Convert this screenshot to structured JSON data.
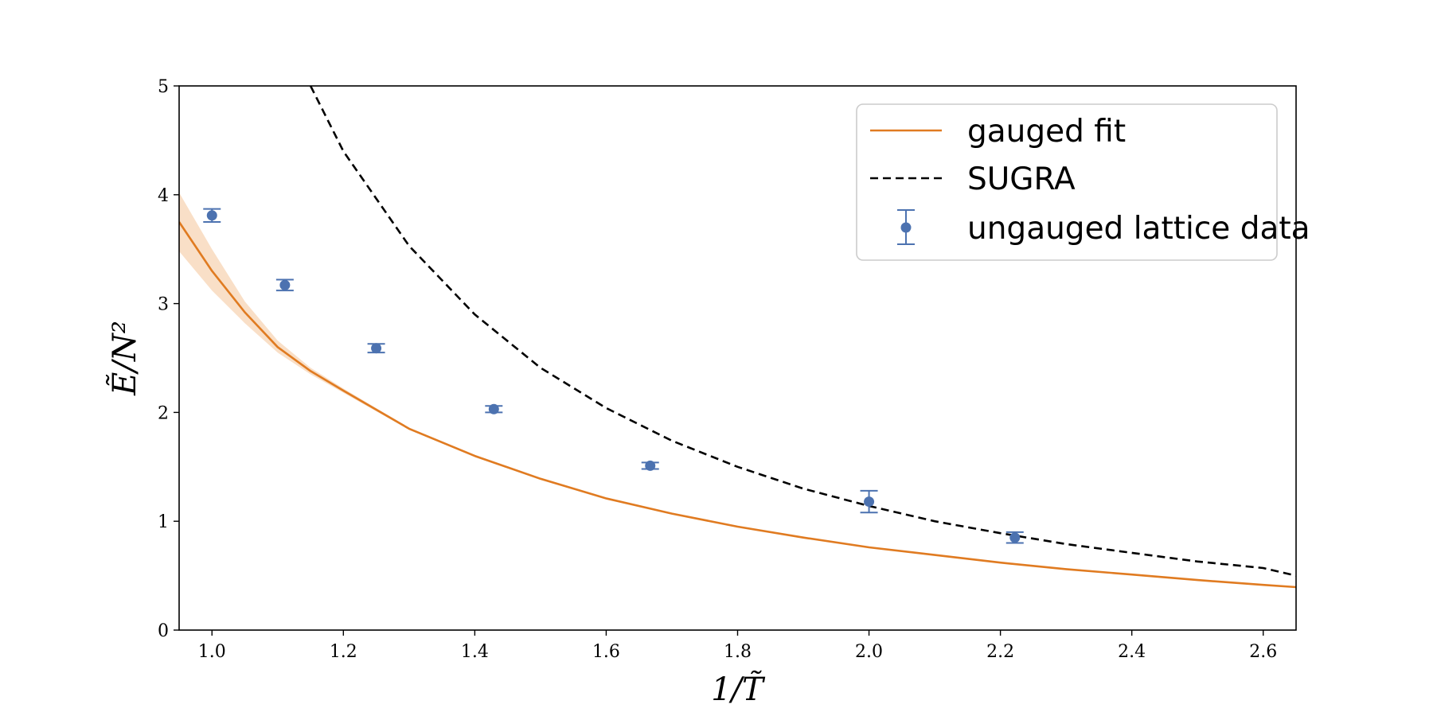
{
  "chart_data": {
    "type": "line",
    "xlabel": "1/T̃",
    "ylabel": "Ẽ/N²",
    "xlim": [
      0.95,
      2.65
    ],
    "ylim": [
      0,
      5
    ],
    "x_ticks": [
      1.0,
      1.2,
      1.4,
      1.6,
      1.8,
      2.0,
      2.2,
      2.4,
      2.6
    ],
    "x_tick_labels": [
      "1.0",
      "1.2",
      "1.4",
      "1.6",
      "1.8",
      "2.0",
      "2.2",
      "2.4",
      "2.6"
    ],
    "y_ticks": [
      0,
      1,
      2,
      3,
      4,
      5
    ],
    "y_tick_labels": [
      "0",
      "1",
      "2",
      "3",
      "4",
      "5"
    ],
    "grid": false,
    "legend": {
      "position": "top-right",
      "entries": [
        "gauged fit",
        "SUGRA",
        "ungauged lattice data"
      ]
    },
    "series": [
      {
        "name": "gauged fit",
        "kind": "line",
        "color": "#e07b21",
        "band_color": "#f5c9a2",
        "x": [
          0.95,
          1.0,
          1.05,
          1.1,
          1.15,
          1.2,
          1.3,
          1.4,
          1.5,
          1.6,
          1.7,
          1.8,
          1.9,
          2.0,
          2.1,
          2.2,
          2.3,
          2.4,
          2.5,
          2.6,
          2.65
        ],
        "y": [
          3.75,
          3.3,
          2.92,
          2.6,
          2.38,
          2.2,
          1.85,
          1.6,
          1.39,
          1.21,
          1.07,
          0.95,
          0.85,
          0.76,
          0.69,
          0.62,
          0.56,
          0.51,
          0.46,
          0.415,
          0.395
        ],
        "y_lower": [
          3.48,
          3.12,
          2.82,
          2.55,
          2.35,
          2.18,
          1.84,
          1.59,
          1.38,
          1.205,
          1.065,
          0.945,
          0.845,
          0.755,
          0.685,
          0.615,
          0.555,
          0.505,
          0.455,
          0.41,
          0.39
        ],
        "y_upper": [
          4.02,
          3.5,
          3.02,
          2.66,
          2.41,
          2.22,
          1.86,
          1.61,
          1.4,
          1.215,
          1.075,
          0.955,
          0.855,
          0.765,
          0.695,
          0.625,
          0.565,
          0.515,
          0.465,
          0.42,
          0.4
        ]
      },
      {
        "name": "SUGRA",
        "kind": "line",
        "style": "dashed",
        "color": "#000000",
        "x": [
          1.15,
          1.2,
          1.3,
          1.4,
          1.5,
          1.6,
          1.7,
          1.8,
          1.9,
          2.0,
          2.1,
          2.2,
          2.3,
          2.4,
          2.5,
          2.6,
          2.65
        ],
        "y": [
          5.0,
          4.4,
          3.53,
          2.9,
          2.41,
          2.04,
          1.74,
          1.5,
          1.3,
          1.14,
          1.0,
          0.89,
          0.79,
          0.71,
          0.63,
          0.57,
          0.5
        ]
      },
      {
        "name": "ungauged lattice data",
        "kind": "errorbar",
        "color": "#4c72b0",
        "x": [
          1.0,
          1.111,
          1.25,
          1.429,
          1.667,
          2.0,
          2.222
        ],
        "y": [
          3.81,
          3.17,
          2.59,
          2.03,
          1.51,
          1.18,
          0.85
        ],
        "yerr": [
          0.06,
          0.05,
          0.04,
          0.03,
          0.03,
          0.1,
          0.05
        ]
      }
    ]
  }
}
